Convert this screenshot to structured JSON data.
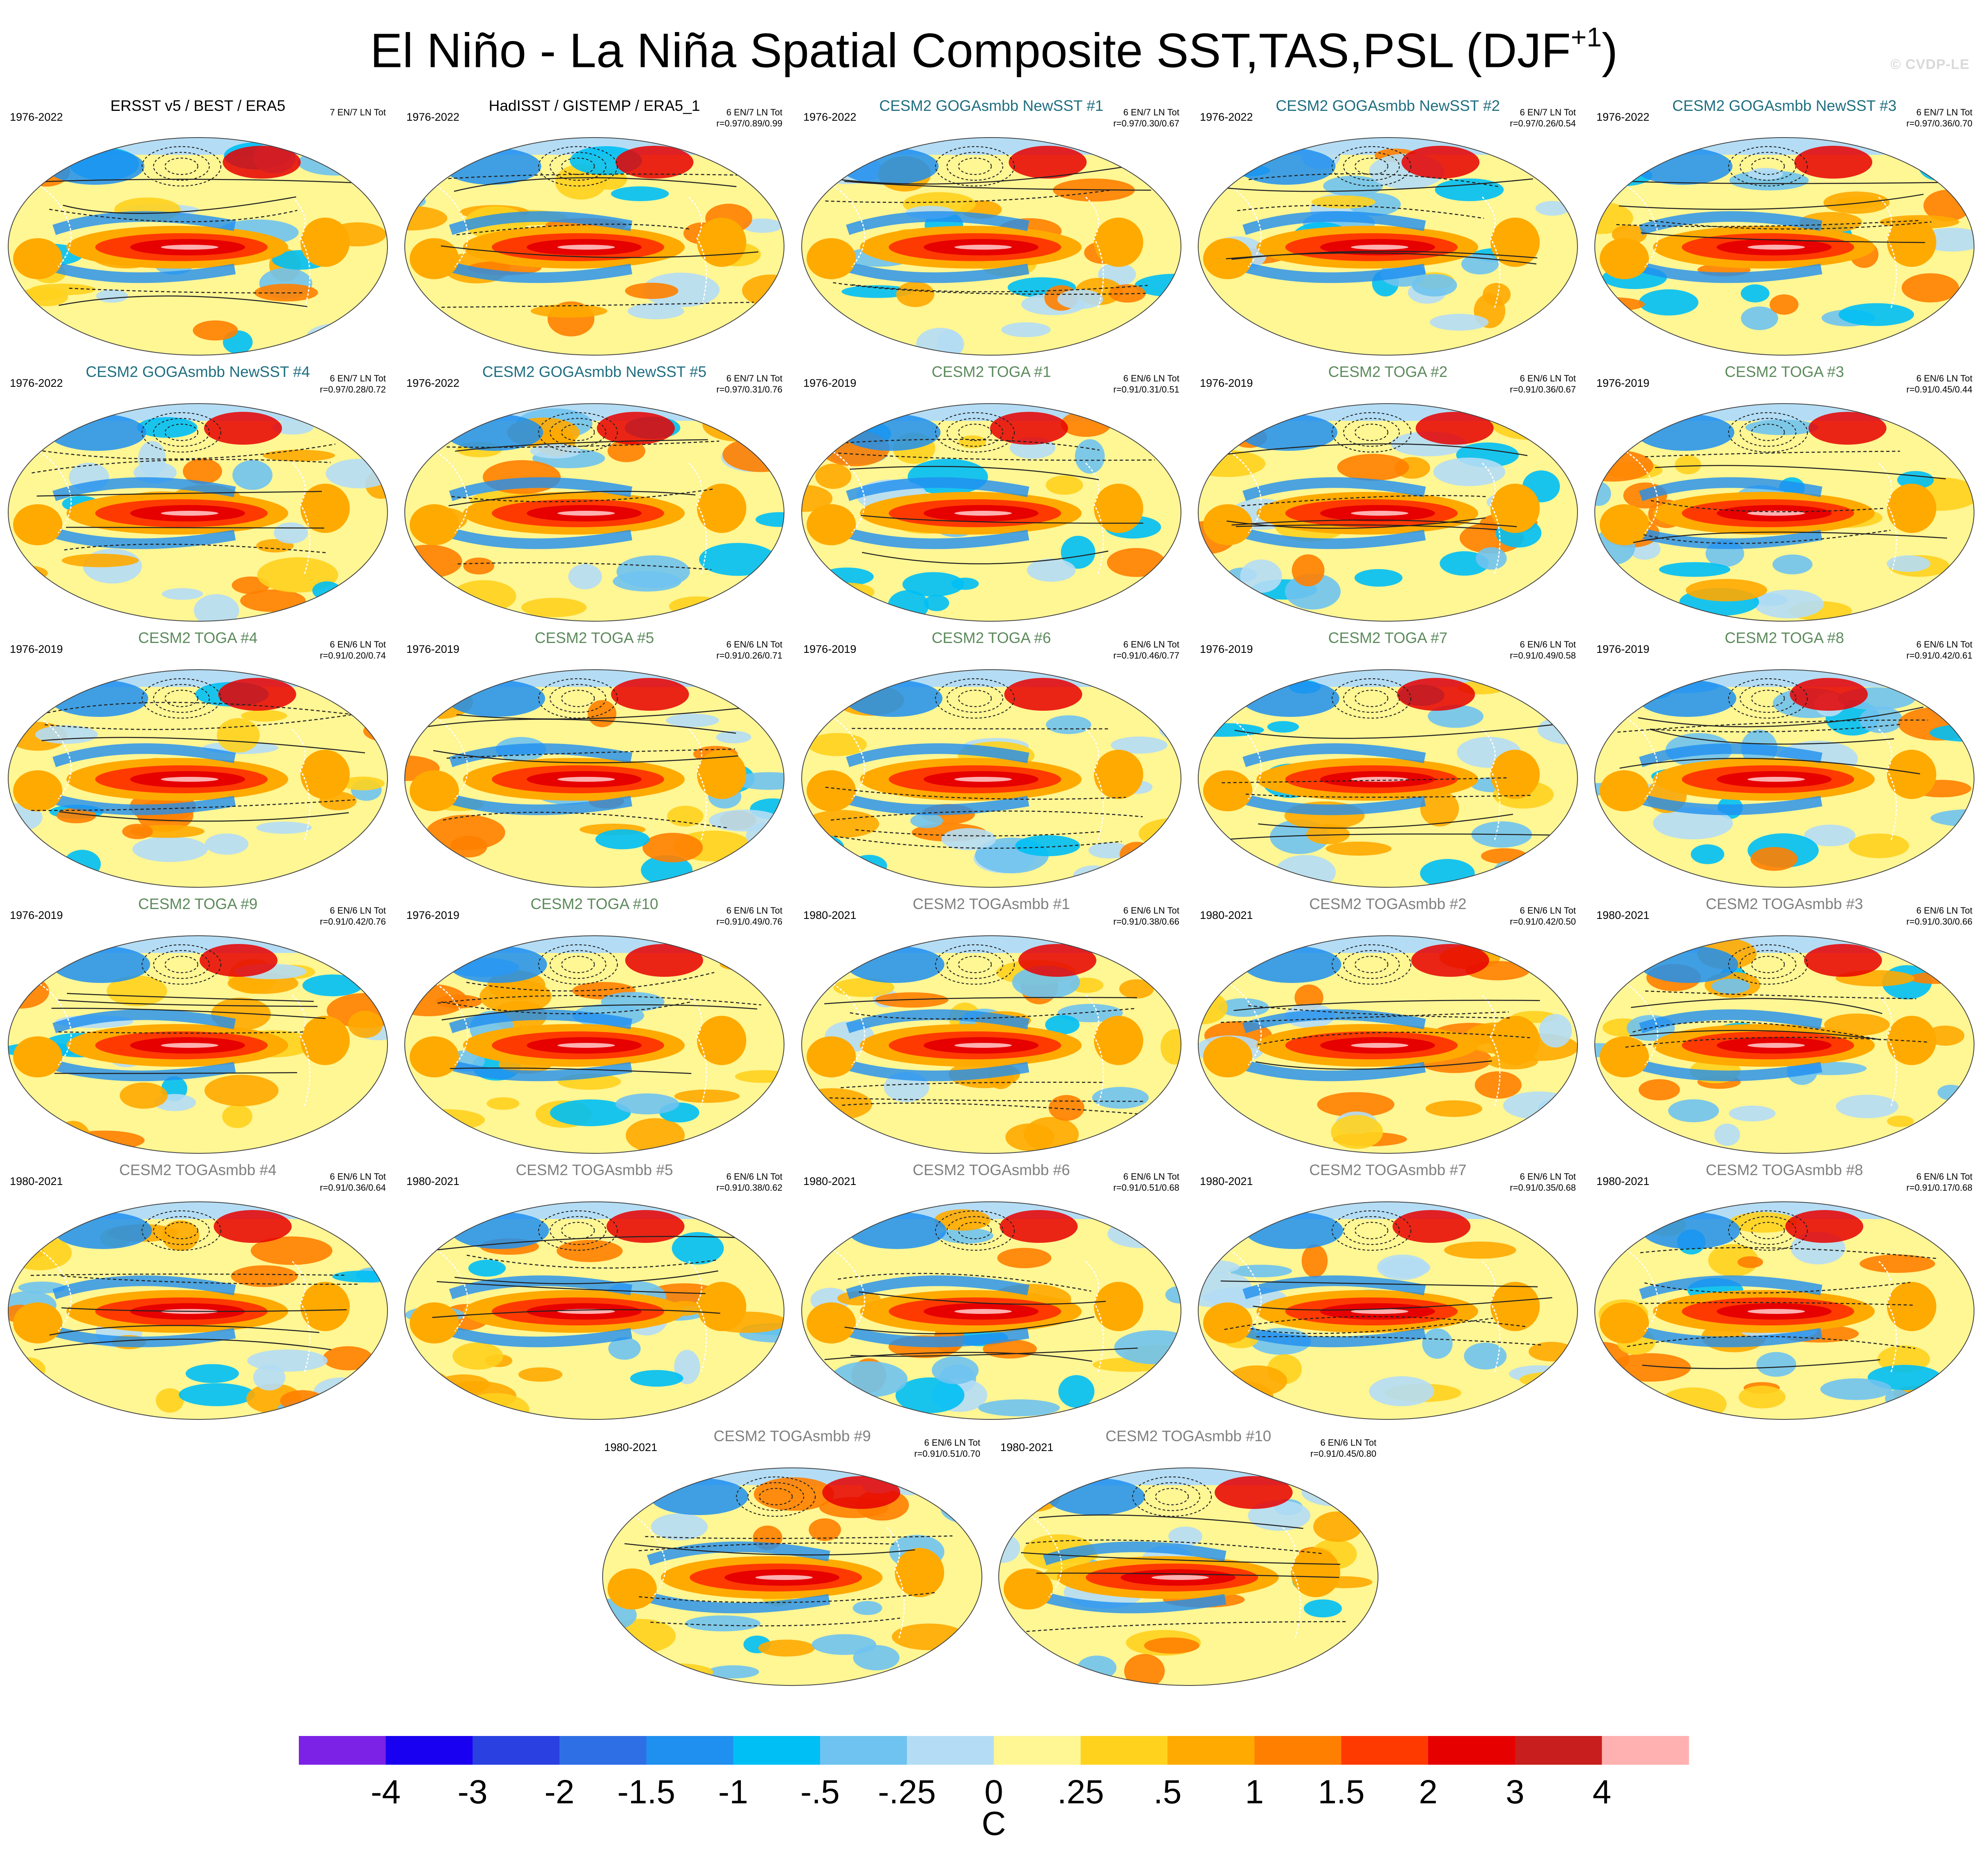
{
  "title": "El Niño - La Niña Spatial Composite SST,TAS,PSL (DJF",
  "title_sup": "+1",
  "title_end": ")",
  "watermark": "© CVDP-LE",
  "colors": {
    "obs_title": "#000000",
    "newsst_title": "#1f6e80",
    "toga_title": "#5c8a5c",
    "togasmbb_title": "#808080"
  },
  "chart_data": {
    "type": "heatmap",
    "description_level": "small-multiples of global composite maps",
    "variable_units": "C",
    "panels": [
      {
        "title": "ERSST v5 / BEST / ERA5",
        "group": "obs",
        "period": "1976-2022",
        "events": "7 EN/7 LN Tot",
        "r": ""
      },
      {
        "title": "HadISST / GISTEMP / ERA5_1",
        "group": "obs",
        "period": "1976-2022",
        "events": "6 EN/7 LN Tot",
        "r": "r=0.97/0.89/0.99"
      },
      {
        "title": "CESM2 GOGAsmbb NewSST #1",
        "group": "newsst",
        "period": "1976-2022",
        "events": "6 EN/7 LN Tot",
        "r": "r=0.97/0.30/0.67"
      },
      {
        "title": "CESM2 GOGAsmbb NewSST #2",
        "group": "newsst",
        "period": "1976-2022",
        "events": "6 EN/7 LN Tot",
        "r": "r=0.97/0.26/0.54"
      },
      {
        "title": "CESM2 GOGAsmbb NewSST #3",
        "group": "newsst",
        "period": "1976-2022",
        "events": "6 EN/7 LN Tot",
        "r": "r=0.97/0.36/0.70"
      },
      {
        "title": "CESM2 GOGAsmbb NewSST #4",
        "group": "newsst",
        "period": "1976-2022",
        "events": "6 EN/7 LN Tot",
        "r": "r=0.97/0.28/0.72"
      },
      {
        "title": "CESM2 GOGAsmbb NewSST #5",
        "group": "newsst",
        "period": "1976-2022",
        "events": "6 EN/7 LN Tot",
        "r": "r=0.97/0.31/0.76"
      },
      {
        "title": "CESM2 TOGA #1",
        "group": "toga",
        "period": "1976-2019",
        "events": "6 EN/6 LN Tot",
        "r": "r=0.91/0.31/0.51"
      },
      {
        "title": "CESM2 TOGA #2",
        "group": "toga",
        "period": "1976-2019",
        "events": "6 EN/6 LN Tot",
        "r": "r=0.91/0.36/0.67"
      },
      {
        "title": "CESM2 TOGA #3",
        "group": "toga",
        "period": "1976-2019",
        "events": "6 EN/6 LN Tot",
        "r": "r=0.91/0.45/0.44"
      },
      {
        "title": "CESM2 TOGA #4",
        "group": "toga",
        "period": "1976-2019",
        "events": "6 EN/6 LN Tot",
        "r": "r=0.91/0.20/0.74"
      },
      {
        "title": "CESM2 TOGA #5",
        "group": "toga",
        "period": "1976-2019",
        "events": "6 EN/6 LN Tot",
        "r": "r=0.91/0.26/0.71"
      },
      {
        "title": "CESM2 TOGA #6",
        "group": "toga",
        "period": "1976-2019",
        "events": "6 EN/6 LN Tot",
        "r": "r=0.91/0.46/0.77"
      },
      {
        "title": "CESM2 TOGA #7",
        "group": "toga",
        "period": "1976-2019",
        "events": "6 EN/6 LN Tot",
        "r": "r=0.91/0.49/0.58"
      },
      {
        "title": "CESM2 TOGA #8",
        "group": "toga",
        "period": "1976-2019",
        "events": "6 EN/6 LN Tot",
        "r": "r=0.91/0.42/0.61"
      },
      {
        "title": "CESM2 TOGA #9",
        "group": "toga",
        "period": "1976-2019",
        "events": "6 EN/6 LN Tot",
        "r": "r=0.91/0.42/0.76"
      },
      {
        "title": "CESM2 TOGA #10",
        "group": "toga",
        "period": "1976-2019",
        "events": "6 EN/6 LN Tot",
        "r": "r=0.91/0.49/0.76"
      },
      {
        "title": "CESM2 TOGAsmbb #1",
        "group": "togasmbb",
        "period": "1980-2021",
        "events": "6 EN/6 LN Tot",
        "r": "r=0.91/0.38/0.66"
      },
      {
        "title": "CESM2 TOGAsmbb #2",
        "group": "togasmbb",
        "period": "1980-2021",
        "events": "6 EN/6 LN Tot",
        "r": "r=0.91/0.42/0.50"
      },
      {
        "title": "CESM2 TOGAsmbb #3",
        "group": "togasmbb",
        "period": "1980-2021",
        "events": "6 EN/6 LN Tot",
        "r": "r=0.91/0.30/0.66"
      },
      {
        "title": "CESM2 TOGAsmbb #4",
        "group": "togasmbb",
        "period": "1980-2021",
        "events": "6 EN/6 LN Tot",
        "r": "r=0.91/0.36/0.64"
      },
      {
        "title": "CESM2 TOGAsmbb #5",
        "group": "togasmbb",
        "period": "1980-2021",
        "events": "6 EN/6 LN Tot",
        "r": "r=0.91/0.38/0.62"
      },
      {
        "title": "CESM2 TOGAsmbb #6",
        "group": "togasmbb",
        "period": "1980-2021",
        "events": "6 EN/6 LN Tot",
        "r": "r=0.91/0.51/0.68"
      },
      {
        "title": "CESM2 TOGAsmbb #7",
        "group": "togasmbb",
        "period": "1980-2021",
        "events": "6 EN/6 LN Tot",
        "r": "r=0.91/0.35/0.68"
      },
      {
        "title": "CESM2 TOGAsmbb #8",
        "group": "togasmbb",
        "period": "1980-2021",
        "events": "6 EN/6 LN Tot",
        "r": "r=0.91/0.17/0.68"
      },
      {
        "title": "CESM2 TOGAsmbb #9",
        "group": "togasmbb",
        "period": "1980-2021",
        "events": "6 EN/6 LN Tot",
        "r": "r=0.91/0.51/0.70"
      },
      {
        "title": "CESM2 TOGAsmbb #10",
        "group": "togasmbb",
        "period": "1980-2021",
        "events": "6 EN/6 LN Tot",
        "r": "r=0.91/0.45/0.80"
      }
    ],
    "colorbar": {
      "labels": [
        "-4",
        "-3",
        "-2",
        "-1.5",
        "-1",
        "-.5",
        "-.25",
        "0",
        ".25",
        ".5",
        "1",
        "1.5",
        "2",
        "3",
        "4"
      ],
      "units": "C",
      "colors": [
        "#7b22e6",
        "#1a00f0",
        "#2a40e0",
        "#2f6fe6",
        "#1f8ff0",
        "#00bff5",
        "#6fc3f0",
        "#b4ddf5",
        "#fff694",
        "#ffd21e",
        "#ffaa00",
        "#ff7f00",
        "#ff3a00",
        "#e60000",
        "#c81e1e",
        "#ffb0b0"
      ]
    }
  }
}
